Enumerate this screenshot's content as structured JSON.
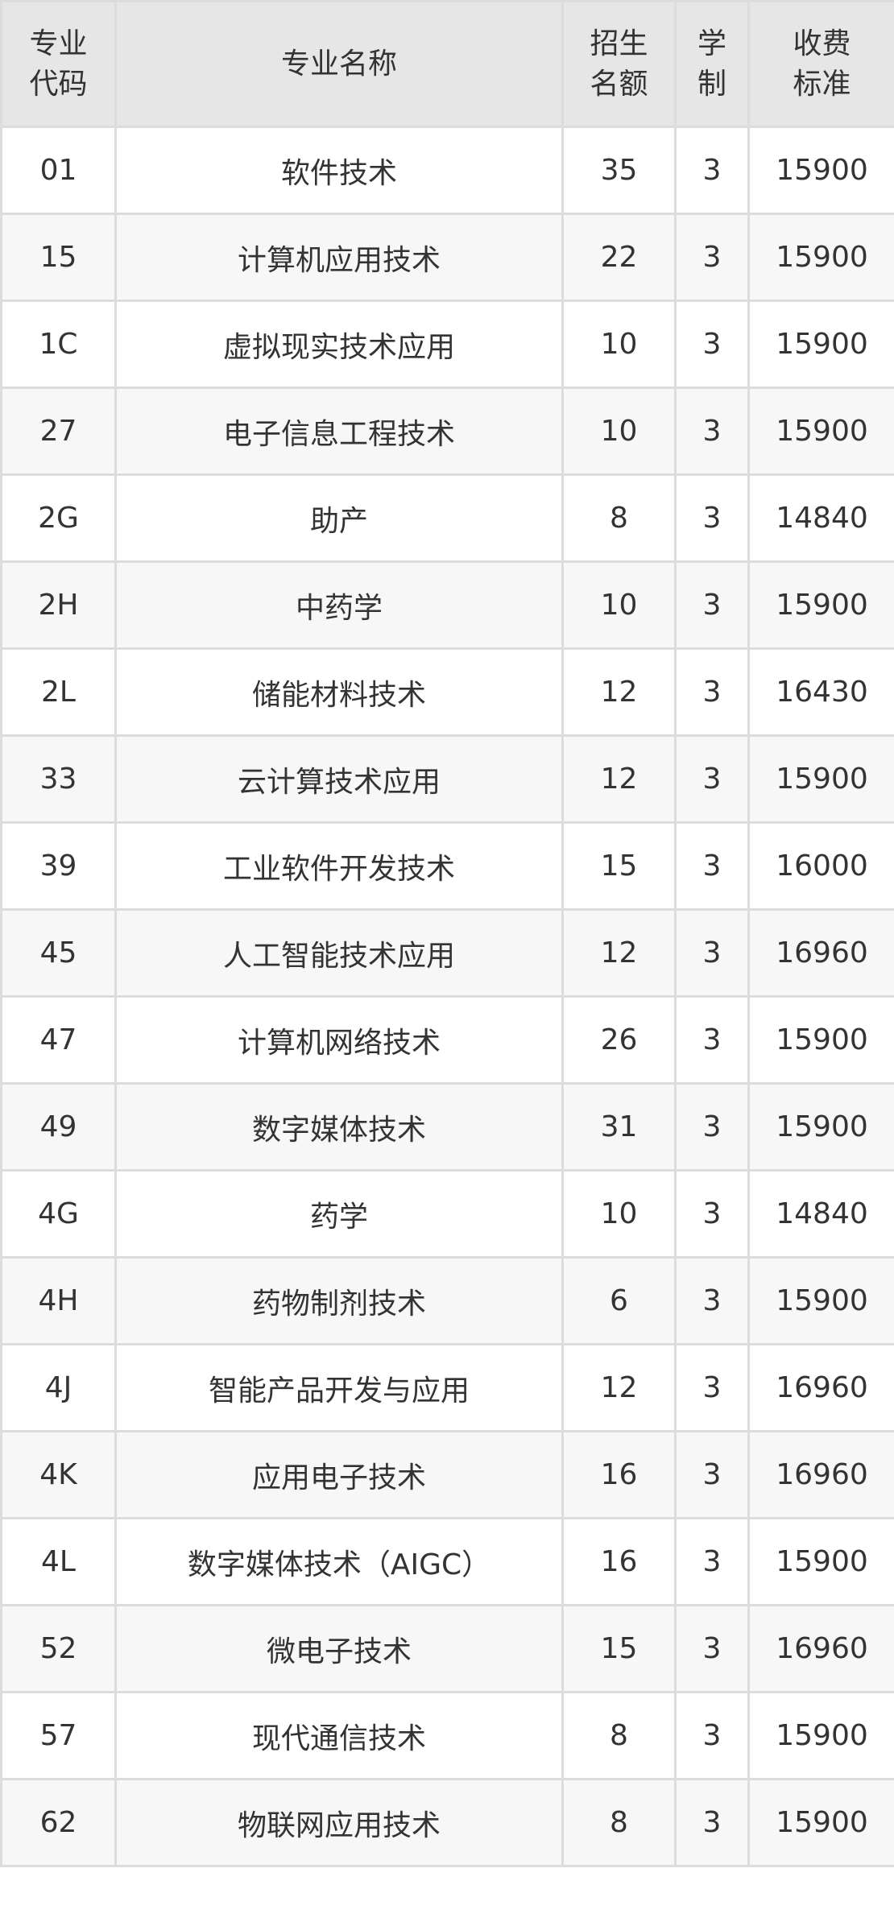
{
  "table": {
    "headers": [
      [
        "专业",
        "代码"
      ],
      [
        "专业名称"
      ],
      [
        "招生",
        "名额"
      ],
      [
        "学",
        "制"
      ],
      [
        "收费",
        "标准"
      ]
    ],
    "rows": [
      [
        "01",
        "软件技术",
        "35",
        "3",
        "15900"
      ],
      [
        "15",
        "计算机应用技术",
        "22",
        "3",
        "15900"
      ],
      [
        "1C",
        "虚拟现实技术应用",
        "10",
        "3",
        "15900"
      ],
      [
        "27",
        "电子信息工程技术",
        "10",
        "3",
        "15900"
      ],
      [
        "2G",
        "助产",
        "8",
        "3",
        "14840"
      ],
      [
        "2H",
        "中药学",
        "10",
        "3",
        "15900"
      ],
      [
        "2L",
        "储能材料技术",
        "12",
        "3",
        "16430"
      ],
      [
        "33",
        "云计算技术应用",
        "12",
        "3",
        "15900"
      ],
      [
        "39",
        "工业软件开发技术",
        "15",
        "3",
        "16000"
      ],
      [
        "45",
        "人工智能技术应用",
        "12",
        "3",
        "16960"
      ],
      [
        "47",
        "计算机网络技术",
        "26",
        "3",
        "15900"
      ],
      [
        "49",
        "数字媒体技术",
        "31",
        "3",
        "15900"
      ],
      [
        "4G",
        "药学",
        "10",
        "3",
        "14840"
      ],
      [
        "4H",
        "药物制剂技术",
        "6",
        "3",
        "15900"
      ],
      [
        "4J",
        "智能产品开发与应用",
        "12",
        "3",
        "16960"
      ],
      [
        "4K",
        "应用电子技术",
        "16",
        "3",
        "16960"
      ],
      [
        "4L",
        "数字媒体技术（AIGC）",
        "16",
        "3",
        "15900"
      ],
      [
        "52",
        "微电子技术",
        "15",
        "3",
        "16960"
      ],
      [
        "57",
        "现代通信技术",
        "8",
        "3",
        "15900"
      ],
      [
        "62",
        "物联网应用技术",
        "8",
        "3",
        "15900"
      ]
    ]
  },
  "colors": {
    "header_bg": "#e6e6e6",
    "alt_row_bg": "#f7f7f7",
    "border": "#dcdcdc",
    "text": "#333333"
  }
}
